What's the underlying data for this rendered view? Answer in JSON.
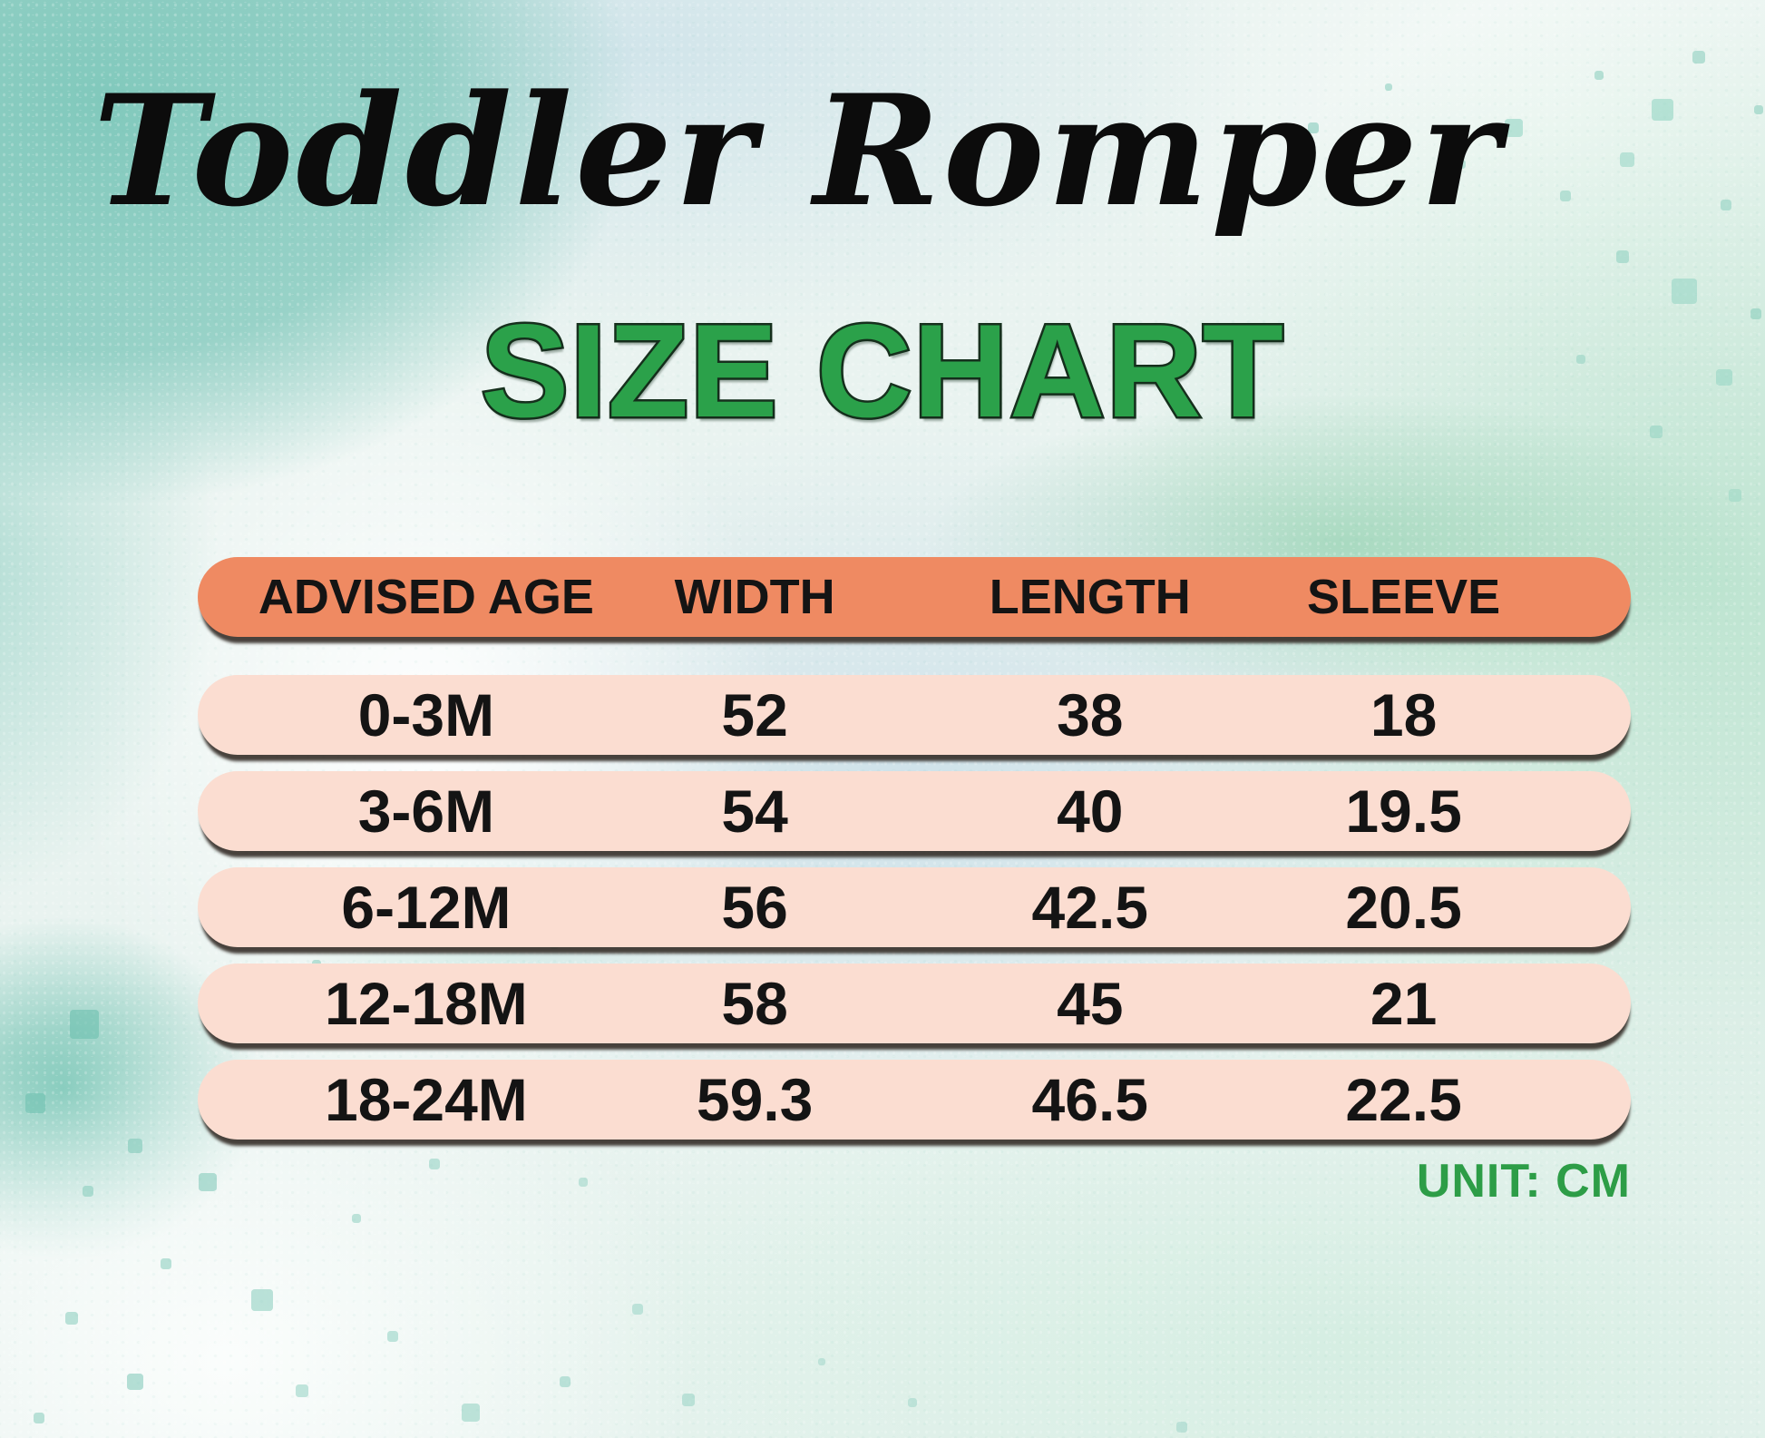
{
  "poster": {
    "title": "Toddler Romper",
    "subtitle": "SIZE CHART",
    "unit_label": "UNIT: CM"
  },
  "colors": {
    "header_pill": "#EF8A62",
    "row_pill": "#FBDDD1",
    "subtitle_green": "#2BA14A",
    "unit_green": "#2D9D47",
    "text_black": "#141414",
    "background_teal": "#8FCFC2",
    "background_mint": "#BAE3CE",
    "background_blue": "#C4DBE7"
  },
  "table": {
    "columns": [
      "ADVISED AGE",
      "WIDTH",
      "LENGTH",
      "SLEEVE"
    ],
    "rows": [
      {
        "age": "0-3M",
        "width": "52",
        "length": "38",
        "sleeve": "18"
      },
      {
        "age": "3-6M",
        "width": "54",
        "length": "40",
        "sleeve": "19.5"
      },
      {
        "age": "6-12M",
        "width": "56",
        "length": "42.5",
        "sleeve": "20.5"
      },
      {
        "age": "12-18M",
        "width": "58",
        "length": "45",
        "sleeve": "21"
      },
      {
        "age": "18-24M",
        "width": "59.3",
        "length": "46.5",
        "sleeve": "22.5"
      }
    ]
  },
  "chart_data": {
    "type": "table",
    "title": "Toddler Romper",
    "subtitle": "SIZE CHART",
    "unit": "CM",
    "columns": [
      "ADVISED AGE",
      "WIDTH",
      "LENGTH",
      "SLEEVE"
    ],
    "rows": [
      [
        "0-3M",
        52,
        38,
        18
      ],
      [
        "3-6M",
        54,
        40,
        19.5
      ],
      [
        "6-12M",
        56,
        42.5,
        20.5
      ],
      [
        "12-18M",
        58,
        45,
        21
      ],
      [
        "18-24M",
        59.3,
        46.5,
        22.5
      ]
    ]
  }
}
